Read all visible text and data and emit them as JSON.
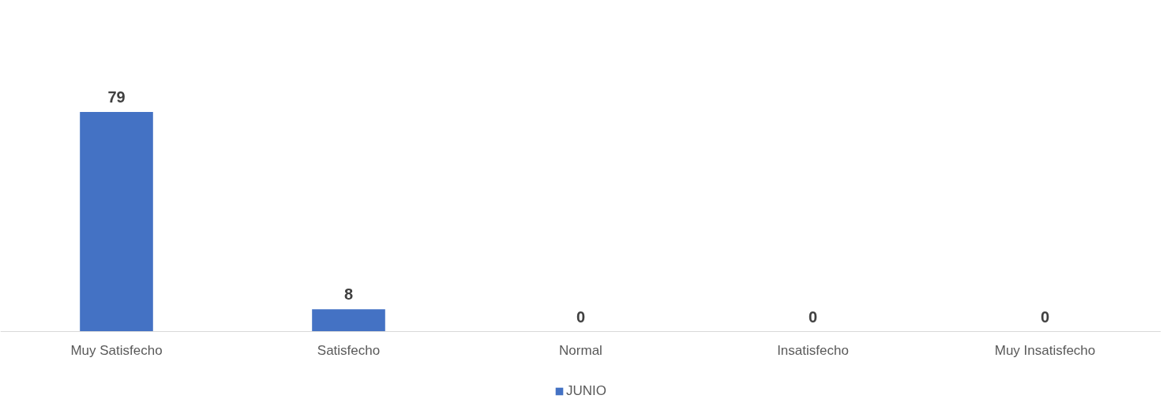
{
  "chart_data": {
    "type": "bar",
    "categories": [
      "Muy Satisfecho",
      "Satisfecho",
      "Normal",
      "Insatisfecho",
      "Muy Insatisfecho"
    ],
    "series": [
      {
        "name": "JUNIO",
        "color": "#4472c4",
        "values": [
          79,
          8,
          0,
          0,
          0
        ]
      }
    ],
    "data_labels": true,
    "legend": "bottom",
    "grid": false
  }
}
